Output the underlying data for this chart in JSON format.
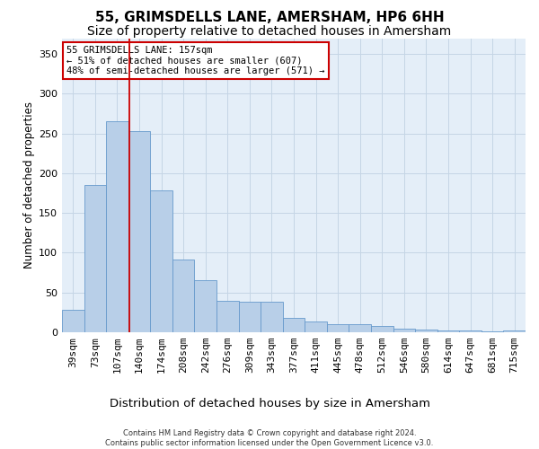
{
  "title": "55, GRIMSDELLS LANE, AMERSHAM, HP6 6HH",
  "subtitle": "Size of property relative to detached houses in Amersham",
  "xlabel": "Distribution of detached houses by size in Amersham",
  "ylabel": "Number of detached properties",
  "categories": [
    "39sqm",
    "73sqm",
    "107sqm",
    "140sqm",
    "174sqm",
    "208sqm",
    "242sqm",
    "276sqm",
    "309sqm",
    "343sqm",
    "377sqm",
    "411sqm",
    "445sqm",
    "478sqm",
    "512sqm",
    "546sqm",
    "580sqm",
    "614sqm",
    "647sqm",
    "681sqm",
    "715sqm"
  ],
  "values": [
    28,
    185,
    265,
    253,
    178,
    92,
    65,
    40,
    38,
    38,
    18,
    14,
    10,
    10,
    8,
    5,
    3,
    2,
    2,
    1,
    2
  ],
  "bar_color": "#b8cfe8",
  "bar_edge_color": "#6699cc",
  "grid_color": "#c5d5e5",
  "background_color": "#e4eef8",
  "vline_x": 2.57,
  "vline_color": "#cc0000",
  "annotation_text": "55 GRIMSDELLS LANE: 157sqm\n← 51% of detached houses are smaller (607)\n48% of semi-detached houses are larger (571) →",
  "annotation_box_color": "#ffffff",
  "annotation_box_edge": "#cc0000",
  "footer": "Contains HM Land Registry data © Crown copyright and database right 2024.\nContains public sector information licensed under the Open Government Licence v3.0.",
  "ylim": [
    0,
    370
  ],
  "yticks": [
    0,
    50,
    100,
    150,
    200,
    250,
    300,
    350
  ],
  "title_fontsize": 11,
  "subtitle_fontsize": 10,
  "ylabel_fontsize": 8.5,
  "xlabel_fontsize": 9.5,
  "tick_fontsize": 8,
  "annot_fontsize": 7.5
}
